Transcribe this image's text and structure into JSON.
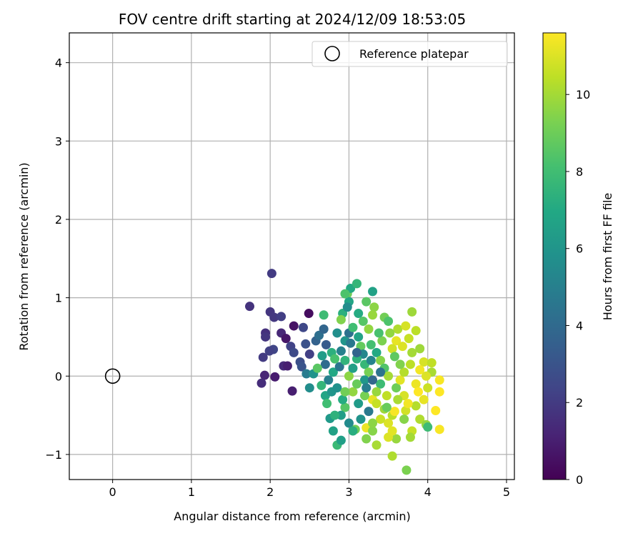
{
  "chart_data": {
    "type": "scatter",
    "title": "FOV centre drift starting at 2024/12/09 18:53:05",
    "xlabel": "Angular distance from reference (arcmin)",
    "ylabel": "Rotation from reference (arcmin)",
    "xlim": [
      -0.55,
      5.1
    ],
    "ylim": [
      -1.32,
      4.38
    ],
    "x_ticks": [
      0,
      1,
      2,
      3,
      4,
      5
    ],
    "x_tick_labels": [
      "0",
      "1",
      "2",
      "3",
      "4",
      "5"
    ],
    "y_ticks": [
      -1,
      0,
      1,
      2,
      3,
      4
    ],
    "y_tick_labels": [
      "−1",
      "0",
      "1",
      "2",
      "3",
      "4"
    ],
    "grid": true,
    "legend": {
      "placement": "top-right",
      "entries": [
        {
          "label": "Reference platepar",
          "marker": "open-circle",
          "color": "#000000"
        }
      ]
    },
    "reference_point": {
      "x": 0,
      "y": 0
    },
    "colorbar": {
      "label": "Hours from first FF file",
      "colormap": "viridis",
      "range": [
        0,
        11.6
      ],
      "ticks": [
        0,
        2,
        4,
        6,
        8,
        10
      ],
      "tick_labels": [
        "0",
        "2",
        "4",
        "6",
        "8",
        "10"
      ]
    },
    "points": [
      {
        "x": 2.02,
        "y": 1.31,
        "t": 2.0
      },
      {
        "x": 1.74,
        "y": 0.89,
        "t": 1.7
      },
      {
        "x": 2.0,
        "y": 0.82,
        "t": 1.8
      },
      {
        "x": 2.05,
        "y": 0.75,
        "t": 1.9
      },
      {
        "x": 2.14,
        "y": 0.76,
        "t": 2.1
      },
      {
        "x": 2.49,
        "y": 0.8,
        "t": 0.4
      },
      {
        "x": 2.3,
        "y": 0.64,
        "t": 0.6
      },
      {
        "x": 1.94,
        "y": 0.55,
        "t": 1.6
      },
      {
        "x": 1.94,
        "y": 0.5,
        "t": 1.8
      },
      {
        "x": 2.14,
        "y": 0.55,
        "t": 1.3
      },
      {
        "x": 2.2,
        "y": 0.48,
        "t": 0.7
      },
      {
        "x": 2.26,
        "y": 0.38,
        "t": 2.3
      },
      {
        "x": 2.04,
        "y": 0.34,
        "t": 2.4
      },
      {
        "x": 1.99,
        "y": 0.32,
        "t": 2.2
      },
      {
        "x": 1.91,
        "y": 0.24,
        "t": 2.0
      },
      {
        "x": 2.3,
        "y": 0.3,
        "t": 2.6
      },
      {
        "x": 2.38,
        "y": 0.18,
        "t": 2.8
      },
      {
        "x": 2.17,
        "y": 0.13,
        "t": 1.4
      },
      {
        "x": 2.22,
        "y": 0.13,
        "t": 1.0
      },
      {
        "x": 1.93,
        "y": 0.01,
        "t": 1.2
      },
      {
        "x": 2.06,
        "y": -0.01,
        "t": 0.9
      },
      {
        "x": 1.89,
        "y": -0.09,
        "t": 1.5
      },
      {
        "x": 2.28,
        "y": -0.19,
        "t": 1.0
      },
      {
        "x": 2.42,
        "y": 0.62,
        "t": 2.5
      },
      {
        "x": 2.45,
        "y": 0.41,
        "t": 2.9
      },
      {
        "x": 2.5,
        "y": 0.28,
        "t": 2.2
      },
      {
        "x": 2.4,
        "y": 0.12,
        "t": 3.0
      },
      {
        "x": 2.46,
        "y": 0.03,
        "t": 4.8
      },
      {
        "x": 2.5,
        "y": -0.15,
        "t": 5.6
      },
      {
        "x": 2.55,
        "y": 0.03,
        "t": 5.9
      },
      {
        "x": 2.58,
        "y": 0.45,
        "t": 3.6
      },
      {
        "x": 2.62,
        "y": 0.52,
        "t": 4.2
      },
      {
        "x": 2.68,
        "y": 0.6,
        "t": 3.8
      },
      {
        "x": 2.71,
        "y": 0.4,
        "t": 3.3
      },
      {
        "x": 2.66,
        "y": 0.26,
        "t": 6.4
      },
      {
        "x": 2.7,
        "y": 0.15,
        "t": 4.1
      },
      {
        "x": 2.74,
        "y": -0.05,
        "t": 5.0
      },
      {
        "x": 2.7,
        "y": -0.25,
        "t": 6.8
      },
      {
        "x": 2.76,
        "y": -0.54,
        "t": 6.2
      },
      {
        "x": 2.8,
        "y": -0.7,
        "t": 6.6
      },
      {
        "x": 2.78,
        "y": -0.2,
        "t": 6.0
      },
      {
        "x": 2.85,
        "y": -0.88,
        "t": 7.8
      },
      {
        "x": 2.9,
        "y": -0.82,
        "t": 6.5
      },
      {
        "x": 2.68,
        "y": 0.78,
        "t": 7.9
      },
      {
        "x": 2.92,
        "y": 0.8,
        "t": 7.3
      },
      {
        "x": 2.9,
        "y": 0.72,
        "t": 9.4
      },
      {
        "x": 2.98,
        "y": 1.05,
        "t": 9.0
      },
      {
        "x": 3.02,
        "y": 1.12,
        "t": 7.0
      },
      {
        "x": 3.1,
        "y": 1.18,
        "t": 7.6
      },
      {
        "x": 3.0,
        "y": 0.95,
        "t": 6.8
      },
      {
        "x": 2.98,
        "y": 0.88,
        "t": 5.6
      },
      {
        "x": 3.3,
        "y": 1.08,
        "t": 6.6
      },
      {
        "x": 3.22,
        "y": 0.95,
        "t": 8.6
      },
      {
        "x": 3.32,
        "y": 0.88,
        "t": 9.6
      },
      {
        "x": 3.45,
        "y": 0.75,
        "t": 9.1
      },
      {
        "x": 3.3,
        "y": 0.78,
        "t": 9.8
      },
      {
        "x": 3.5,
        "y": 0.7,
        "t": 8.3
      },
      {
        "x": 3.62,
        "y": 0.6,
        "t": 10.2
      },
      {
        "x": 3.72,
        "y": 0.64,
        "t": 10.9
      },
      {
        "x": 3.8,
        "y": 0.82,
        "t": 9.9
      },
      {
        "x": 3.85,
        "y": 0.58,
        "t": 10.4
      },
      {
        "x": 3.76,
        "y": 0.48,
        "t": 10.6
      },
      {
        "x": 3.6,
        "y": 0.45,
        "t": 11.2
      },
      {
        "x": 3.55,
        "y": 0.35,
        "t": 10.8
      },
      {
        "x": 3.8,
        "y": 0.3,
        "t": 10.0
      },
      {
        "x": 3.95,
        "y": 0.18,
        "t": 10.9
      },
      {
        "x": 4.05,
        "y": 0.17,
        "t": 10.5
      },
      {
        "x": 3.9,
        "y": 0.08,
        "t": 11.4
      },
      {
        "x": 4.05,
        "y": 0.05,
        "t": 10.1
      },
      {
        "x": 4.15,
        "y": -0.05,
        "t": 11.5
      },
      {
        "x": 3.98,
        "y": 0.0,
        "t": 11.0
      },
      {
        "x": 3.85,
        "y": -0.1,
        "t": 11.3
      },
      {
        "x": 4.0,
        "y": -0.15,
        "t": 10.7
      },
      {
        "x": 4.15,
        "y": -0.2,
        "t": 11.6
      },
      {
        "x": 3.95,
        "y": -0.3,
        "t": 11.2
      },
      {
        "x": 3.85,
        "y": -0.38,
        "t": 10.3
      },
      {
        "x": 4.1,
        "y": -0.44,
        "t": 11.6
      },
      {
        "x": 3.9,
        "y": -0.55,
        "t": 10.2
      },
      {
        "x": 3.98,
        "y": -0.62,
        "t": 9.7
      },
      {
        "x": 4.0,
        "y": -0.65,
        "t": 7.9
      },
      {
        "x": 4.15,
        "y": -0.68,
        "t": 11.5
      },
      {
        "x": 3.8,
        "y": -0.7,
        "t": 10.6
      },
      {
        "x": 3.78,
        "y": -0.78,
        "t": 10.0
      },
      {
        "x": 3.6,
        "y": -0.8,
        "t": 9.8
      },
      {
        "x": 3.5,
        "y": -0.78,
        "t": 11.0
      },
      {
        "x": 3.35,
        "y": -0.88,
        "t": 10.1
      },
      {
        "x": 3.55,
        "y": -1.02,
        "t": 10.2
      },
      {
        "x": 3.73,
        "y": -1.2,
        "t": 9.3
      },
      {
        "x": 3.22,
        "y": -0.8,
        "t": 9.4
      },
      {
        "x": 3.22,
        "y": -0.66,
        "t": 11.3
      },
      {
        "x": 3.08,
        "y": -0.68,
        "t": 9.0
      },
      {
        "x": 3.3,
        "y": -0.7,
        "t": 9.5
      },
      {
        "x": 3.5,
        "y": -0.6,
        "t": 11.0
      },
      {
        "x": 3.55,
        "y": -0.5,
        "t": 10.4
      },
      {
        "x": 3.72,
        "y": -0.44,
        "t": 10.8
      },
      {
        "x": 3.58,
        "y": -0.45,
        "t": 11.5
      },
      {
        "x": 3.45,
        "y": -0.42,
        "t": 9.9
      },
      {
        "x": 3.3,
        "y": -0.3,
        "t": 11.2
      },
      {
        "x": 3.35,
        "y": -0.35,
        "t": 10.6
      },
      {
        "x": 3.2,
        "y": -0.25,
        "t": 9.2
      },
      {
        "x": 3.05,
        "y": -0.2,
        "t": 9.7
      },
      {
        "x": 2.95,
        "y": -0.4,
        "t": 8.5
      },
      {
        "x": 2.9,
        "y": -0.5,
        "t": 6.4
      },
      {
        "x": 3.0,
        "y": -0.6,
        "t": 5.5
      },
      {
        "x": 3.05,
        "y": -0.7,
        "t": 7.2
      },
      {
        "x": 3.15,
        "y": -0.55,
        "t": 5.9
      },
      {
        "x": 3.25,
        "y": -0.45,
        "t": 4.7
      },
      {
        "x": 3.12,
        "y": -0.35,
        "t": 6.3
      },
      {
        "x": 2.92,
        "y": -0.3,
        "t": 7.1
      },
      {
        "x": 2.85,
        "y": -0.15,
        "t": 5.8
      },
      {
        "x": 2.8,
        "y": 0.05,
        "t": 6.9
      },
      {
        "x": 2.88,
        "y": 0.12,
        "t": 4.5
      },
      {
        "x": 2.95,
        "y": 0.2,
        "t": 7.5
      },
      {
        "x": 2.9,
        "y": 0.32,
        "t": 5.0
      },
      {
        "x": 2.95,
        "y": 0.45,
        "t": 6.0
      },
      {
        "x": 3.0,
        "y": 0.55,
        "t": 4.3
      },
      {
        "x": 3.05,
        "y": 0.62,
        "t": 8.0
      },
      {
        "x": 3.12,
        "y": 0.5,
        "t": 6.7
      },
      {
        "x": 3.15,
        "y": 0.38,
        "t": 8.8
      },
      {
        "x": 3.18,
        "y": 0.28,
        "t": 5.3
      },
      {
        "x": 3.2,
        "y": 0.15,
        "t": 7.7
      },
      {
        "x": 3.25,
        "y": 0.05,
        "t": 9.2
      },
      {
        "x": 3.2,
        "y": -0.05,
        "t": 6.1
      },
      {
        "x": 3.1,
        "y": -0.1,
        "t": 8.9
      },
      {
        "x": 3.0,
        "y": 0.0,
        "t": 9.6
      },
      {
        "x": 3.05,
        "y": 0.1,
        "t": 6.5
      },
      {
        "x": 3.1,
        "y": 0.22,
        "t": 7.4
      },
      {
        "x": 3.28,
        "y": 0.4,
        "t": 8.1
      },
      {
        "x": 3.35,
        "y": 0.3,
        "t": 7.0
      },
      {
        "x": 3.4,
        "y": 0.2,
        "t": 9.5
      },
      {
        "x": 3.45,
        "y": 0.1,
        "t": 8.4
      },
      {
        "x": 3.5,
        "y": 0.0,
        "t": 10.0
      },
      {
        "x": 3.4,
        "y": -0.1,
        "t": 7.9
      },
      {
        "x": 3.35,
        "y": -0.2,
        "t": 9.8
      },
      {
        "x": 3.48,
        "y": -0.25,
        "t": 10.5
      },
      {
        "x": 3.6,
        "y": -0.15,
        "t": 9.0
      },
      {
        "x": 3.65,
        "y": -0.05,
        "t": 11.1
      },
      {
        "x": 3.7,
        "y": 0.05,
        "t": 10.3
      },
      {
        "x": 3.65,
        "y": 0.15,
        "t": 9.4
      },
      {
        "x": 3.58,
        "y": 0.25,
        "t": 8.7
      },
      {
        "x": 3.7,
        "y": -0.25,
        "t": 10.9
      },
      {
        "x": 3.75,
        "y": -0.35,
        "t": 11.4
      },
      {
        "x": 3.62,
        "y": -0.3,
        "t": 10.1
      },
      {
        "x": 3.42,
        "y": 0.45,
        "t": 9.3
      },
      {
        "x": 3.38,
        "y": 0.55,
        "t": 8.2
      },
      {
        "x": 3.25,
        "y": 0.6,
        "t": 9.7
      },
      {
        "x": 3.18,
        "y": 0.7,
        "t": 8.5
      },
      {
        "x": 3.12,
        "y": 0.8,
        "t": 7.1
      },
      {
        "x": 3.22,
        "y": -0.15,
        "t": 4.9
      },
      {
        "x": 3.3,
        "y": -0.05,
        "t": 3.9
      },
      {
        "x": 3.4,
        "y": 0.05,
        "t": 4.4
      },
      {
        "x": 3.28,
        "y": 0.2,
        "t": 5.2
      },
      {
        "x": 3.1,
        "y": 0.3,
        "t": 3.7
      },
      {
        "x": 3.02,
        "y": 0.42,
        "t": 4.6
      },
      {
        "x": 2.85,
        "y": 0.55,
        "t": 5.7
      },
      {
        "x": 2.78,
        "y": 0.3,
        "t": 7.3
      },
      {
        "x": 2.82,
        "y": 0.22,
        "t": 8.2
      },
      {
        "x": 2.6,
        "y": 0.1,
        "t": 8.6
      },
      {
        "x": 2.65,
        "y": -0.12,
        "t": 7.6
      },
      {
        "x": 2.72,
        "y": -0.35,
        "t": 8.0
      },
      {
        "x": 2.82,
        "y": -0.5,
        "t": 7.4
      },
      {
        "x": 2.95,
        "y": -0.2,
        "t": 9.1
      },
      {
        "x": 3.48,
        "y": -0.4,
        "t": 8.9
      },
      {
        "x": 3.4,
        "y": -0.55,
        "t": 10.7
      },
      {
        "x": 3.3,
        "y": -0.6,
        "t": 9.6
      },
      {
        "x": 3.55,
        "y": -0.7,
        "t": 11.1
      },
      {
        "x": 3.7,
        "y": -0.55,
        "t": 9.5
      },
      {
        "x": 3.88,
        "y": -0.2,
        "t": 11.6
      },
      {
        "x": 3.78,
        "y": 0.15,
        "t": 10.4
      },
      {
        "x": 3.9,
        "y": 0.35,
        "t": 9.9
      },
      {
        "x": 3.68,
        "y": 0.38,
        "t": 11.0
      },
      {
        "x": 3.52,
        "y": 0.55,
        "t": 9.7
      },
      {
        "x": 2.95,
        "y": 1.05,
        "t": 8.3
      }
    ]
  }
}
